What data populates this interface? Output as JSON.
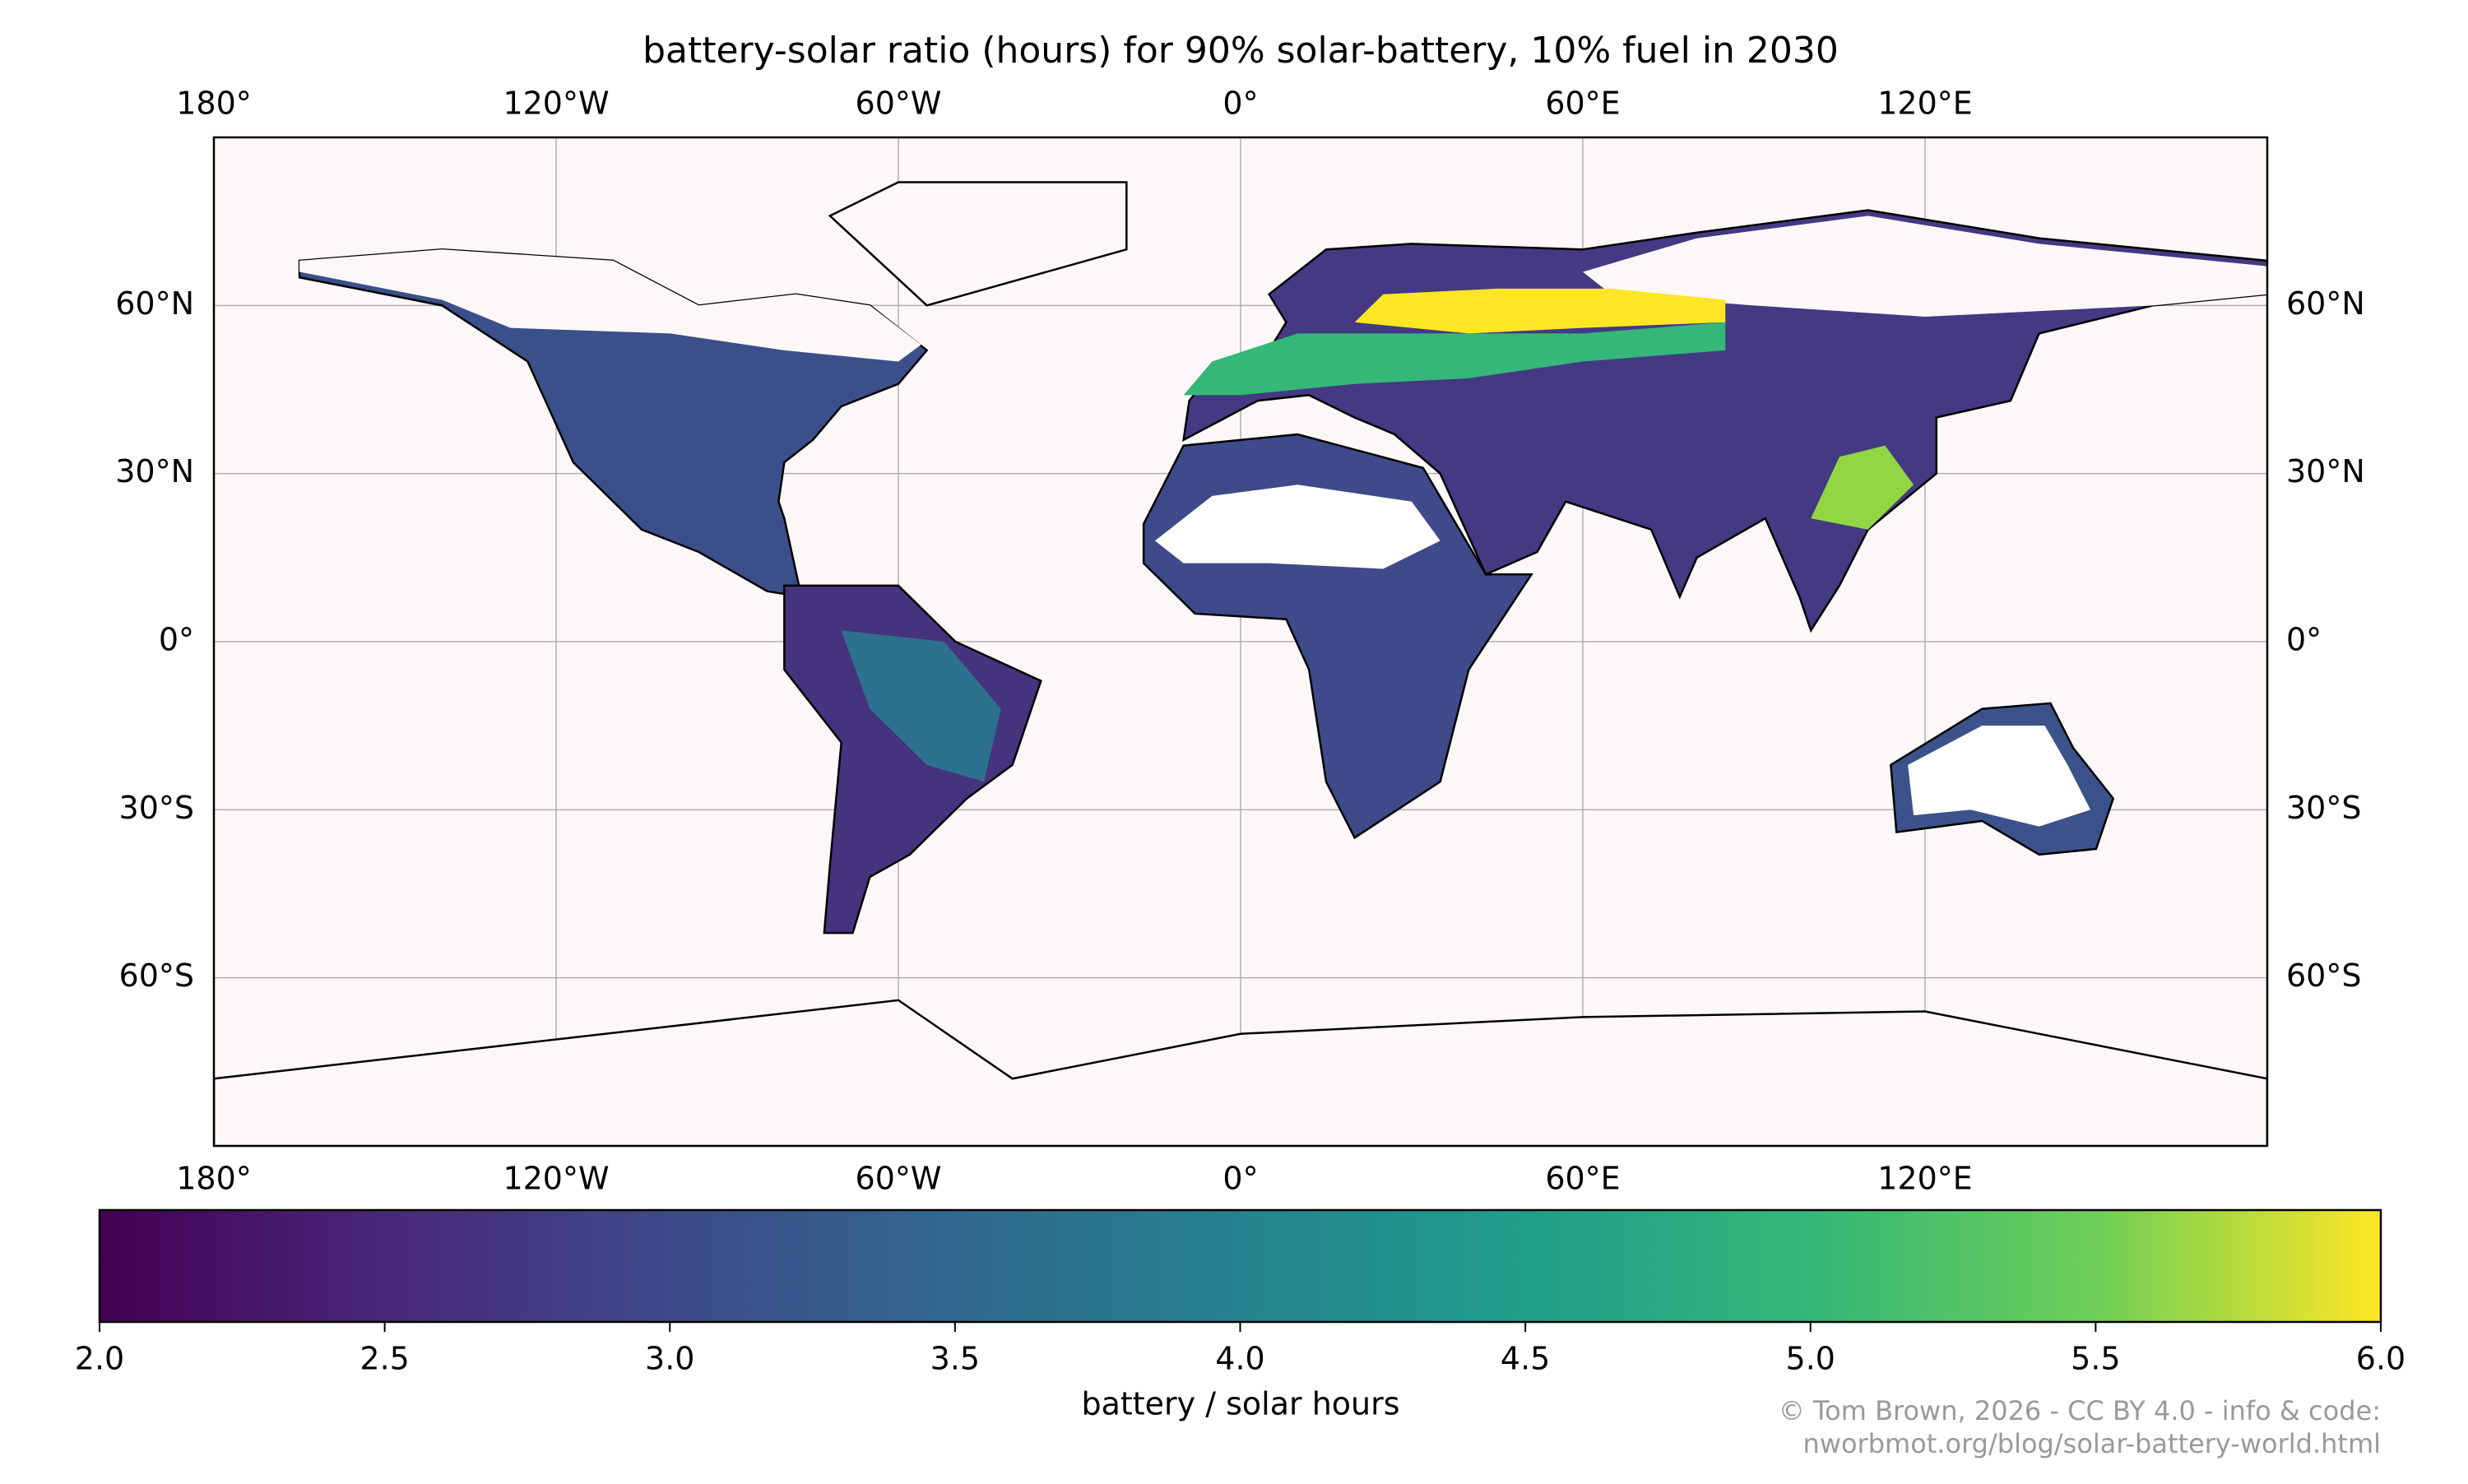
{
  "chart_data": {
    "type": "map",
    "title": "battery-solar ratio (hours) for 90% solar-battery, 10% fuel in 2030",
    "xlim": [
      -180,
      180
    ],
    "ylim": [
      -90,
      90
    ],
    "xticks": [
      {
        "value": -180,
        "label": "180°"
      },
      {
        "value": -120,
        "label": "120°W"
      },
      {
        "value": -60,
        "label": "60°W"
      },
      {
        "value": 0,
        "label": "0°"
      },
      {
        "value": 60,
        "label": "60°E"
      },
      {
        "value": 120,
        "label": "120°E"
      }
    ],
    "yticks": [
      {
        "value": 60,
        "label": "60°N"
      },
      {
        "value": 30,
        "label": "30°N"
      },
      {
        "value": 0,
        "label": "0°"
      },
      {
        "value": -30,
        "label": "30°S"
      },
      {
        "value": -60,
        "label": "60°S"
      }
    ],
    "grid": true,
    "colormap": "viridis",
    "clim": [
      2,
      6
    ],
    "cticks": [
      {
        "value": 2,
        "label": "2.0"
      },
      {
        "value": 2.5,
        "label": "2.5"
      },
      {
        "value": 3,
        "label": "3.0"
      },
      {
        "value": 3.5,
        "label": "3.5"
      },
      {
        "value": 4,
        "label": "4.0"
      },
      {
        "value": 4.5,
        "label": "4.5"
      },
      {
        "value": 5,
        "label": "5.0"
      },
      {
        "value": 5.5,
        "label": "5.5"
      },
      {
        "value": 6,
        "label": "6.0"
      }
    ],
    "colorbar_label": "battery / solar hours",
    "credit": [
      "© Tom Brown, 2026 - CC BY 4.0 - info & code:",
      "nworbmot.org/blog/solar-battery-world.html"
    ]
  }
}
